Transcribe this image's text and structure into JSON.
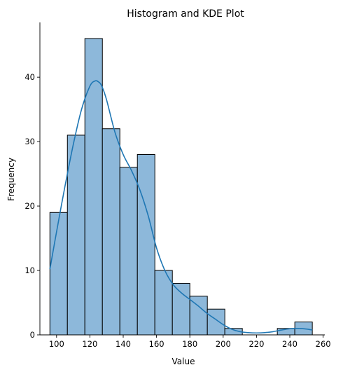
{
  "chart_data": {
    "type": "bar",
    "subtype": "histogram-with-kde",
    "title": "Histogram and KDE Plot",
    "xlabel": "Value",
    "ylabel": "Frequency",
    "xlim": [
      90,
      261
    ],
    "ylim": [
      0,
      48.5
    ],
    "xticks": [
      100,
      120,
      140,
      160,
      180,
      200,
      220,
      240,
      260
    ],
    "yticks": [
      0,
      10,
      20,
      30,
      40
    ],
    "grid": false,
    "legend": "none",
    "bin_edges": [
      96,
      106.5,
      117,
      127.5,
      138,
      148.5,
      159,
      169.5,
      180,
      190.5,
      201,
      211.5,
      222,
      232.5,
      243,
      253.5
    ],
    "counts": [
      19,
      31,
      46,
      32,
      26,
      28,
      10,
      8,
      6,
      4,
      1,
      0,
      0,
      1,
      2
    ],
    "kde": {
      "x": [
        96,
        100,
        105,
        110,
        115,
        120,
        123,
        125,
        127,
        130,
        135,
        140,
        145,
        150,
        155,
        160,
        165,
        170,
        175,
        180,
        185,
        190,
        195,
        200,
        205,
        210,
        215,
        220,
        225,
        230,
        235,
        240,
        245,
        250,
        253.5
      ],
      "y": [
        10.2,
        16,
        23,
        29.5,
        35,
        38.6,
        39.4,
        39.3,
        38.7,
        36.5,
        31.5,
        28,
        25.5,
        22.5,
        18.5,
        13.5,
        10,
        7.8,
        6.5,
        5.5,
        4.5,
        3.4,
        2.5,
        1.6,
        0.9,
        0.5,
        0.35,
        0.3,
        0.35,
        0.5,
        0.75,
        0.95,
        1.0,
        0.9,
        0.75
      ]
    },
    "colors": {
      "bar_fill": "#8db8da",
      "bar_edge": "#000000",
      "kde_line": "#1f77b4"
    }
  }
}
